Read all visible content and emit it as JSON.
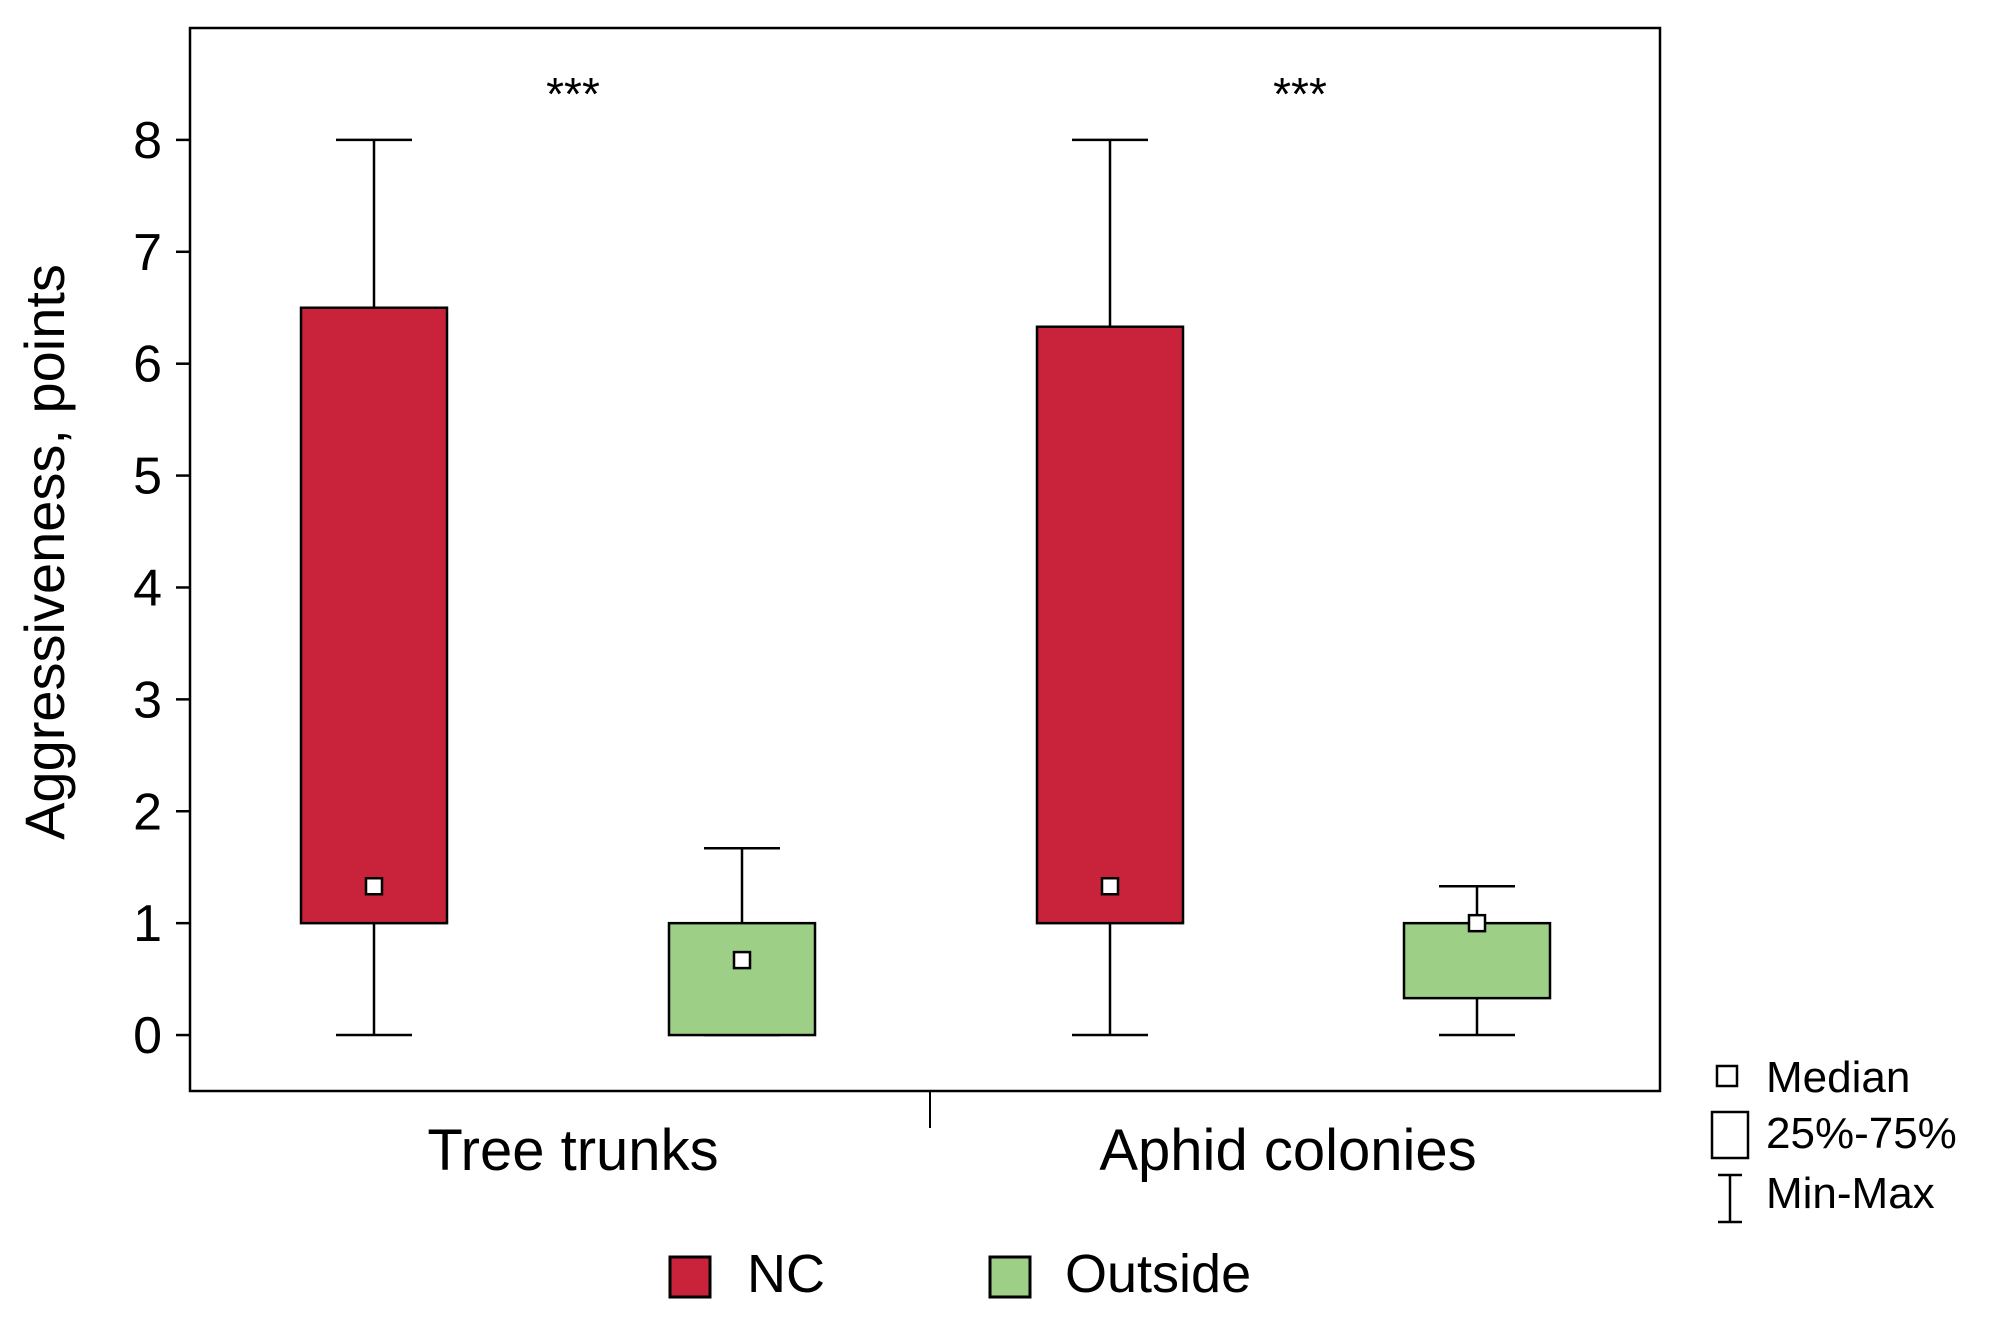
{
  "chart_data": {
    "type": "boxplot",
    "title": "",
    "ylabel": "Aggressiveness, points",
    "xlabel": "",
    "ylim": [
      -0.5,
      9.0
    ],
    "yticks": [
      "0",
      "1",
      "2",
      "3",
      "4",
      "5",
      "6",
      "7",
      "8"
    ],
    "categories": [
      "Tree trunks",
      "Aphid colonies"
    ],
    "significance": [
      "***",
      "***"
    ],
    "series": [
      {
        "name": "NC",
        "color": "#c8233a",
        "boxes": [
          {
            "category": "Tree trunks",
            "min": 0,
            "q1": 1,
            "median": 1.33,
            "q3": 6.5,
            "max": 8
          },
          {
            "category": "Aphid colonies",
            "min": 0,
            "q1": 1,
            "median": 1.33,
            "q3": 6.33,
            "max": 8
          }
        ]
      },
      {
        "name": "Outside",
        "color": "#9ecf86",
        "boxes": [
          {
            "category": "Tree trunks",
            "min": 0,
            "q1": 0,
            "median": 0.67,
            "q3": 1,
            "max": 1.67
          },
          {
            "category": "Aphid colonies",
            "min": 0,
            "q1": 0.33,
            "median": 1,
            "q3": 1,
            "max": 1.33
          }
        ]
      }
    ],
    "legend": {
      "placement": "bottom",
      "entries": [
        "NC",
        "Outside"
      ]
    },
    "key": {
      "placement": "right",
      "median": "Median",
      "box": "25%-75%",
      "whisker": "Min-Max"
    }
  }
}
